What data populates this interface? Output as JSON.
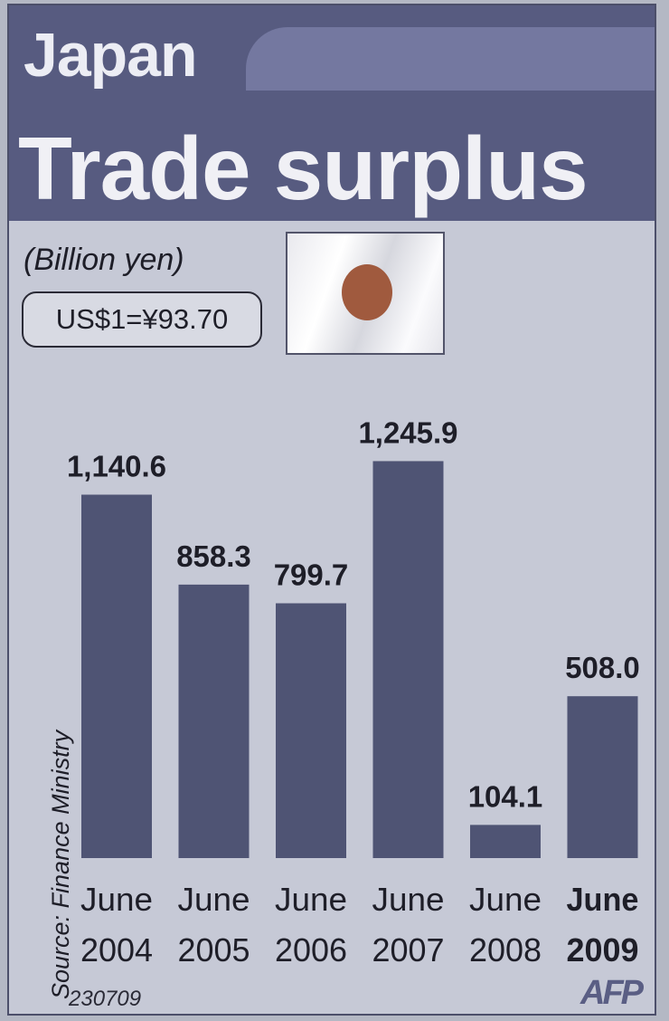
{
  "header": {
    "country": "Japan",
    "title": "Trade surplus"
  },
  "unit_label": "(Billion yen)",
  "exchange_rate": "US$1=¥93.70",
  "source": "Source: Finance Ministry",
  "code": "230709",
  "logo": "AFP",
  "colors": {
    "banner": "#575b80",
    "bar": "#4f5474",
    "background": "#c6c9d6"
  },
  "chart_data": {
    "type": "bar",
    "title": "Trade surplus",
    "ylabel": "(Billion yen)",
    "categories": [
      [
        "June",
        "2004"
      ],
      [
        "June",
        "2005"
      ],
      [
        "June",
        "2006"
      ],
      [
        "June",
        "2007"
      ],
      [
        "June",
        "2008"
      ],
      [
        "June",
        "2009"
      ]
    ],
    "values": [
      1140.6,
      858.3,
      799.7,
      1245.9,
      104.1,
      508.0
    ],
    "value_labels": [
      "1,140.6",
      "858.3",
      "799.7",
      "1,245.9",
      "104.1",
      "508.0"
    ],
    "highlight_index": 5,
    "grid": false
  }
}
